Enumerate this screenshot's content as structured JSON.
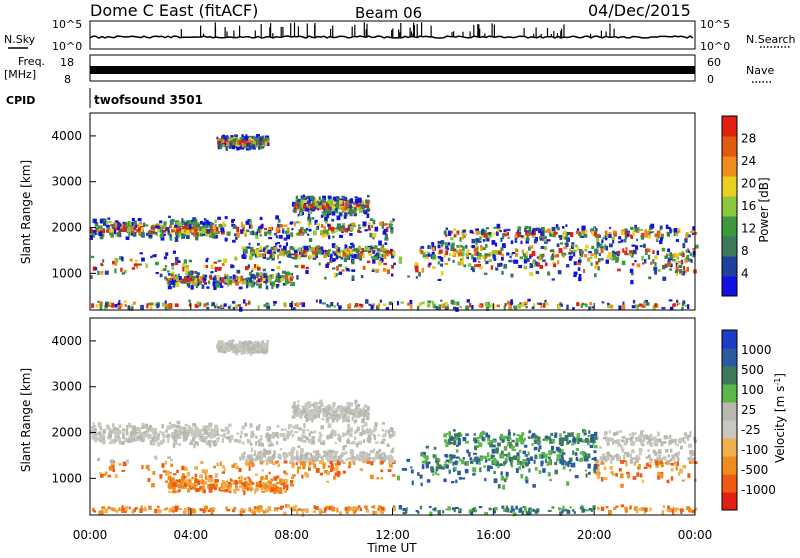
{
  "header": {
    "station": "Dome C East (fitACF)",
    "beam": "Beam 06",
    "date": "04/Dec/2015"
  },
  "sky_panel": {
    "left_label": "N.Sky",
    "right_label": "N.Search",
    "left_ticks": [
      "10^5",
      "10^0"
    ],
    "right_ticks": [
      "10^5",
      "10^0"
    ]
  },
  "freq_panel": {
    "left_label": "Freq.",
    "unit_label": "[MHz]",
    "left_ticks": [
      "18",
      "8"
    ],
    "right_label": "Nave",
    "right_ticks": [
      "60",
      "0"
    ]
  },
  "cpid_panel": {
    "label": "CPID",
    "program": "twofsound 3501"
  },
  "x_axis": {
    "label": "Time UT",
    "ticks": [
      "00:00",
      "04:00",
      "08:00",
      "12:00",
      "16:00",
      "20:00",
      "00:00"
    ]
  },
  "colors": {
    "power": [
      "#1010e0",
      "#2040a0",
      "#3c7a5a",
      "#3c9a3c",
      "#8cc83c",
      "#e8d020",
      "#f08c1c",
      "#e05a10",
      "#e02010"
    ],
    "velocity": [
      "#e02010",
      "#f05a10",
      "#f08c1c",
      "#f0b050",
      "#c8c8c0",
      "#b8b8b0",
      "#5ab84a",
      "#3c7a5a",
      "#2a5aa0",
      "#1c3cc8"
    ]
  },
  "chart_data": [
    {
      "type": "heatmap",
      "title": "Power",
      "xlabel": "Time UT",
      "ylabel": "Slant Range [km]",
      "xlim": [
        "00:00",
        "24:00"
      ],
      "ylim": [
        200,
        4500
      ],
      "yticks": [
        "1000",
        "2000",
        "3000",
        "4000"
      ],
      "colorbar": {
        "label": "Power [dB]",
        "ticks": [
          "4",
          "8",
          "12",
          "16",
          "20",
          "24",
          "28"
        ],
        "range": [
          0,
          30
        ]
      }
    },
    {
      "type": "heatmap",
      "title": "Velocity",
      "xlabel": "Time UT",
      "ylabel": "Slant Range [km]",
      "xlim": [
        "00:00",
        "24:00"
      ],
      "ylim": [
        200,
        4500
      ],
      "yticks": [
        "1000",
        "2000",
        "3000",
        "4000"
      ],
      "colorbar": {
        "label": "Velocity [m s^-1]",
        "ticks": [
          "1000",
          "500",
          "100",
          "25",
          "-25",
          "-100",
          "-500",
          "-1000"
        ]
      }
    }
  ]
}
